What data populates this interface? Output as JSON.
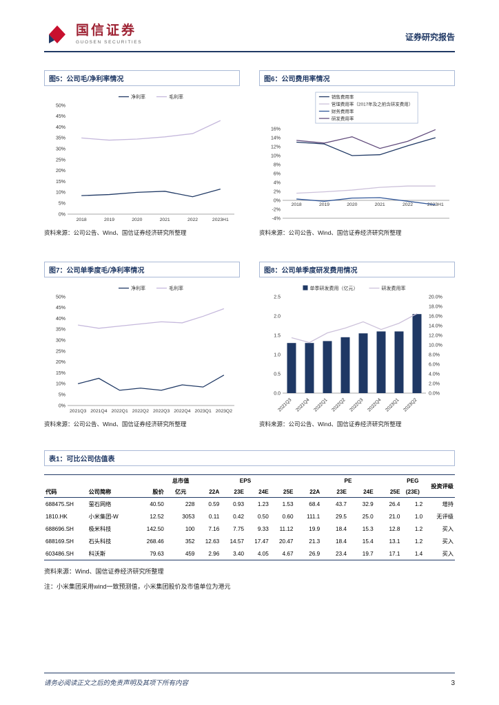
{
  "header": {
    "brand_cn": "国信证券",
    "brand_en": "GUOSEN SECURITIES",
    "report_type": "证券研究报告"
  },
  "chart_data": [
    {
      "id": "fig5",
      "type": "line",
      "title": "图5：公司毛/净利率情况",
      "source": "资料来源：公司公告、Wind、国信证券经济研究所整理",
      "categories": [
        "2018",
        "2019",
        "2020",
        "2021",
        "2022",
        "2023H1"
      ],
      "series": [
        {
          "name": "净利率",
          "color": "#1F3864",
          "values": [
            8.5,
            9.0,
            10.0,
            10.5,
            8.0,
            11.5
          ]
        },
        {
          "name": "毛利率",
          "color": "#C5B8DC",
          "values": [
            35.0,
            34.0,
            34.5,
            35.5,
            37.0,
            43.0
          ]
        }
      ],
      "ylim": [
        0,
        50
      ],
      "ystep": 5,
      "yfmt": "pct0",
      "legend": "row",
      "xrotate": 0,
      "grid": false,
      "legend_position": "top"
    },
    {
      "id": "fig6",
      "type": "line",
      "title": "图6：公司费用率情况",
      "source": "资料来源：公司公告、Wind、国信证券经济研究所整理",
      "categories": [
        "2018",
        "2019",
        "2020",
        "2021",
        "2022",
        "2023H1"
      ],
      "series": [
        {
          "name": "销售费用率",
          "color": "#1F3864",
          "values": [
            13.0,
            12.6,
            10.0,
            10.2,
            12.2,
            14.0
          ]
        },
        {
          "name": "管理费用率（2017年及之前含研发费用）",
          "color": "#CCC1DA",
          "values": [
            1.6,
            1.9,
            2.3,
            2.9,
            3.2,
            3.2
          ]
        },
        {
          "name": "财务费用率",
          "color": "#2F5597",
          "values": [
            0.3,
            -0.2,
            0.5,
            0.6,
            -0.2,
            -1.0
          ]
        },
        {
          "name": "研发费用率",
          "color": "#604A7B",
          "values": [
            13.4,
            12.8,
            14.2,
            11.6,
            13.2,
            15.8
          ]
        }
      ],
      "ylim": [
        -4,
        16
      ],
      "ystep": 2,
      "yfmt": "pct0",
      "legend": "column",
      "xrotate": 0,
      "xlabels_at_zero": true,
      "grid": false,
      "legend_position": "top"
    },
    {
      "id": "fig7",
      "type": "line",
      "title": "图7：公司单季度毛/净利率情况",
      "source": "资料来源：公司公告、Wind、国信证券经济研究所整理",
      "categories": [
        "2021Q3",
        "2021Q4",
        "2022Q1",
        "2022Q2",
        "2022Q3",
        "2022Q4",
        "2023Q1",
        "2023Q2"
      ],
      "series": [
        {
          "name": "净利率",
          "color": "#1F3864",
          "values": [
            10.0,
            12.5,
            7.0,
            8.0,
            7.0,
            9.5,
            8.5,
            14.0
          ]
        },
        {
          "name": "毛利率",
          "color": "#C5B8DC",
          "values": [
            37.0,
            35.5,
            36.5,
            37.5,
            38.5,
            38.0,
            41.0,
            44.5
          ]
        }
      ],
      "ylim": [
        0,
        50
      ],
      "ystep": 5,
      "yfmt": "pct0",
      "legend": "row",
      "xrotate": 0,
      "grid": false,
      "legend_position": "top"
    },
    {
      "id": "fig8",
      "type": "bar-line",
      "title": "图8：公司单季度研发费用情况",
      "source": "资料来源：公司公告、Wind、国信证券经济研究所整理",
      "categories": [
        "2021Q3",
        "2021Q4",
        "2022Q1",
        "2022Q2",
        "2022Q3",
        "2022Q4",
        "2023Q1",
        "2023Q2"
      ],
      "bar": {
        "name": "单季研发费用（亿元）",
        "color": "#1F3864",
        "values": [
          1.3,
          1.3,
          1.35,
          1.45,
          1.55,
          1.6,
          1.6,
          2.05
        ]
      },
      "line": {
        "name": "研发费用率",
        "color": "#CCC1DA",
        "values": [
          11.5,
          10.5,
          12.5,
          13.5,
          14.8,
          13.2,
          14.5,
          16.5
        ]
      },
      "ylim_left": [
        0,
        2.5
      ],
      "ystep_left": 0.5,
      "yfmt_left": "d1",
      "ylim_right": [
        0,
        20
      ],
      "ystep_right": 2,
      "yfmt_right": "pctd1",
      "legend": "row",
      "xrotate": -45,
      "grid": false,
      "legend_position": "top"
    }
  ],
  "table": {
    "title": "表1：可比公司估值表",
    "headers": {
      "code": "代码",
      "name": "公司简称",
      "price": "股价",
      "mcap_top": "总市值",
      "mcap_sub": "亿元",
      "eps": "EPS",
      "pe": "PE",
      "peg": "PEG",
      "peg_sub": "(23E)",
      "rating": "投资评级",
      "eps_cols": [
        "22A",
        "23E",
        "24E",
        "25E"
      ],
      "pe_cols": [
        "22A",
        "23E",
        "24E",
        "25E"
      ]
    },
    "rows": [
      [
        "688475.SH",
        "萤石网络",
        "40.50",
        "228",
        "0.59",
        "0.93",
        "1.23",
        "1.53",
        "68.4",
        "43.7",
        "32.9",
        "26.4",
        "1.2",
        "增持"
      ],
      [
        "1810.HK",
        "小米集团-W",
        "12.52",
        "3053",
        "0.11",
        "0.42",
        "0.50",
        "0.60",
        "111.1",
        "29.5",
        "25.0",
        "21.0",
        "1.0",
        "无评级"
      ],
      [
        "688696.SH",
        "极米科技",
        "142.50",
        "100",
        "7.16",
        "7.75",
        "9.33",
        "11.12",
        "19.9",
        "18.4",
        "15.3",
        "12.8",
        "1.2",
        "买入"
      ],
      [
        "688169.SH",
        "石头科技",
        "268.46",
        "352",
        "12.63",
        "14.57",
        "17.47",
        "20.47",
        "21.3",
        "18.4",
        "15.4",
        "13.1",
        "1.2",
        "买入"
      ],
      [
        "603486.SH",
        "科沃斯",
        "79.63",
        "459",
        "2.96",
        "3.40",
        "4.05",
        "4.67",
        "26.9",
        "23.4",
        "19.7",
        "17.1",
        "1.4",
        "买入"
      ]
    ],
    "source": "资料来源：Wind、国信证券经济研究所整理",
    "note": "注：小米集团采用wind一致预测值，小米集团股价及市值单位为港元"
  },
  "footer": {
    "disclaimer": "请务必阅读正文之后的免责声明及其项下所有内容",
    "page": "3"
  }
}
